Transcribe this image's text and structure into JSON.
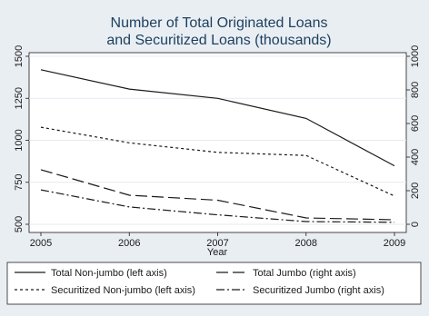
{
  "chart_data": {
    "type": "line",
    "title": [
      "Number of Total Originated Loans",
      "and Securitized Loans (thousands)"
    ],
    "xlabel": "Year",
    "x": [
      2005,
      2006,
      2007,
      2008,
      2009
    ],
    "x_ticks": [
      "2005",
      "2006",
      "2007",
      "2008",
      "2009"
    ],
    "left_axis": {
      "range": [
        500,
        1500
      ],
      "ticks": [
        "500",
        "750",
        "1000",
        "1250",
        "1500"
      ]
    },
    "right_axis": {
      "range": [
        0,
        1000
      ],
      "ticks": [
        "0",
        "200",
        "400",
        "600",
        "800",
        "1000"
      ]
    },
    "series": [
      {
        "name": "Total Non-jumbo (left axis)",
        "axis": "left",
        "dash": "solid",
        "values": [
          1420,
          1305,
          1250,
          1130,
          848
        ]
      },
      {
        "name": "Total Jumbo (right axis)",
        "axis": "right",
        "dash": "long-dash",
        "values": [
          325,
          173,
          143,
          38,
          27
        ]
      },
      {
        "name": "Securitized Non-jumbo (left axis)",
        "axis": "left",
        "dash": "short-dash",
        "values": [
          1078,
          985,
          928,
          910,
          668
        ]
      },
      {
        "name": "Securitized Jumbo (right axis)",
        "axis": "right",
        "dash": "dash-dot",
        "values": [
          205,
          103,
          56,
          16,
          12
        ]
      }
    ],
    "grid": true,
    "legend_position": "bottom",
    "colors": {
      "background": "#e9eef3",
      "plot": "#ffffff",
      "grid": "#e6ebf0",
      "line": "#1a1a1a",
      "title": "#1c3f5e"
    }
  }
}
